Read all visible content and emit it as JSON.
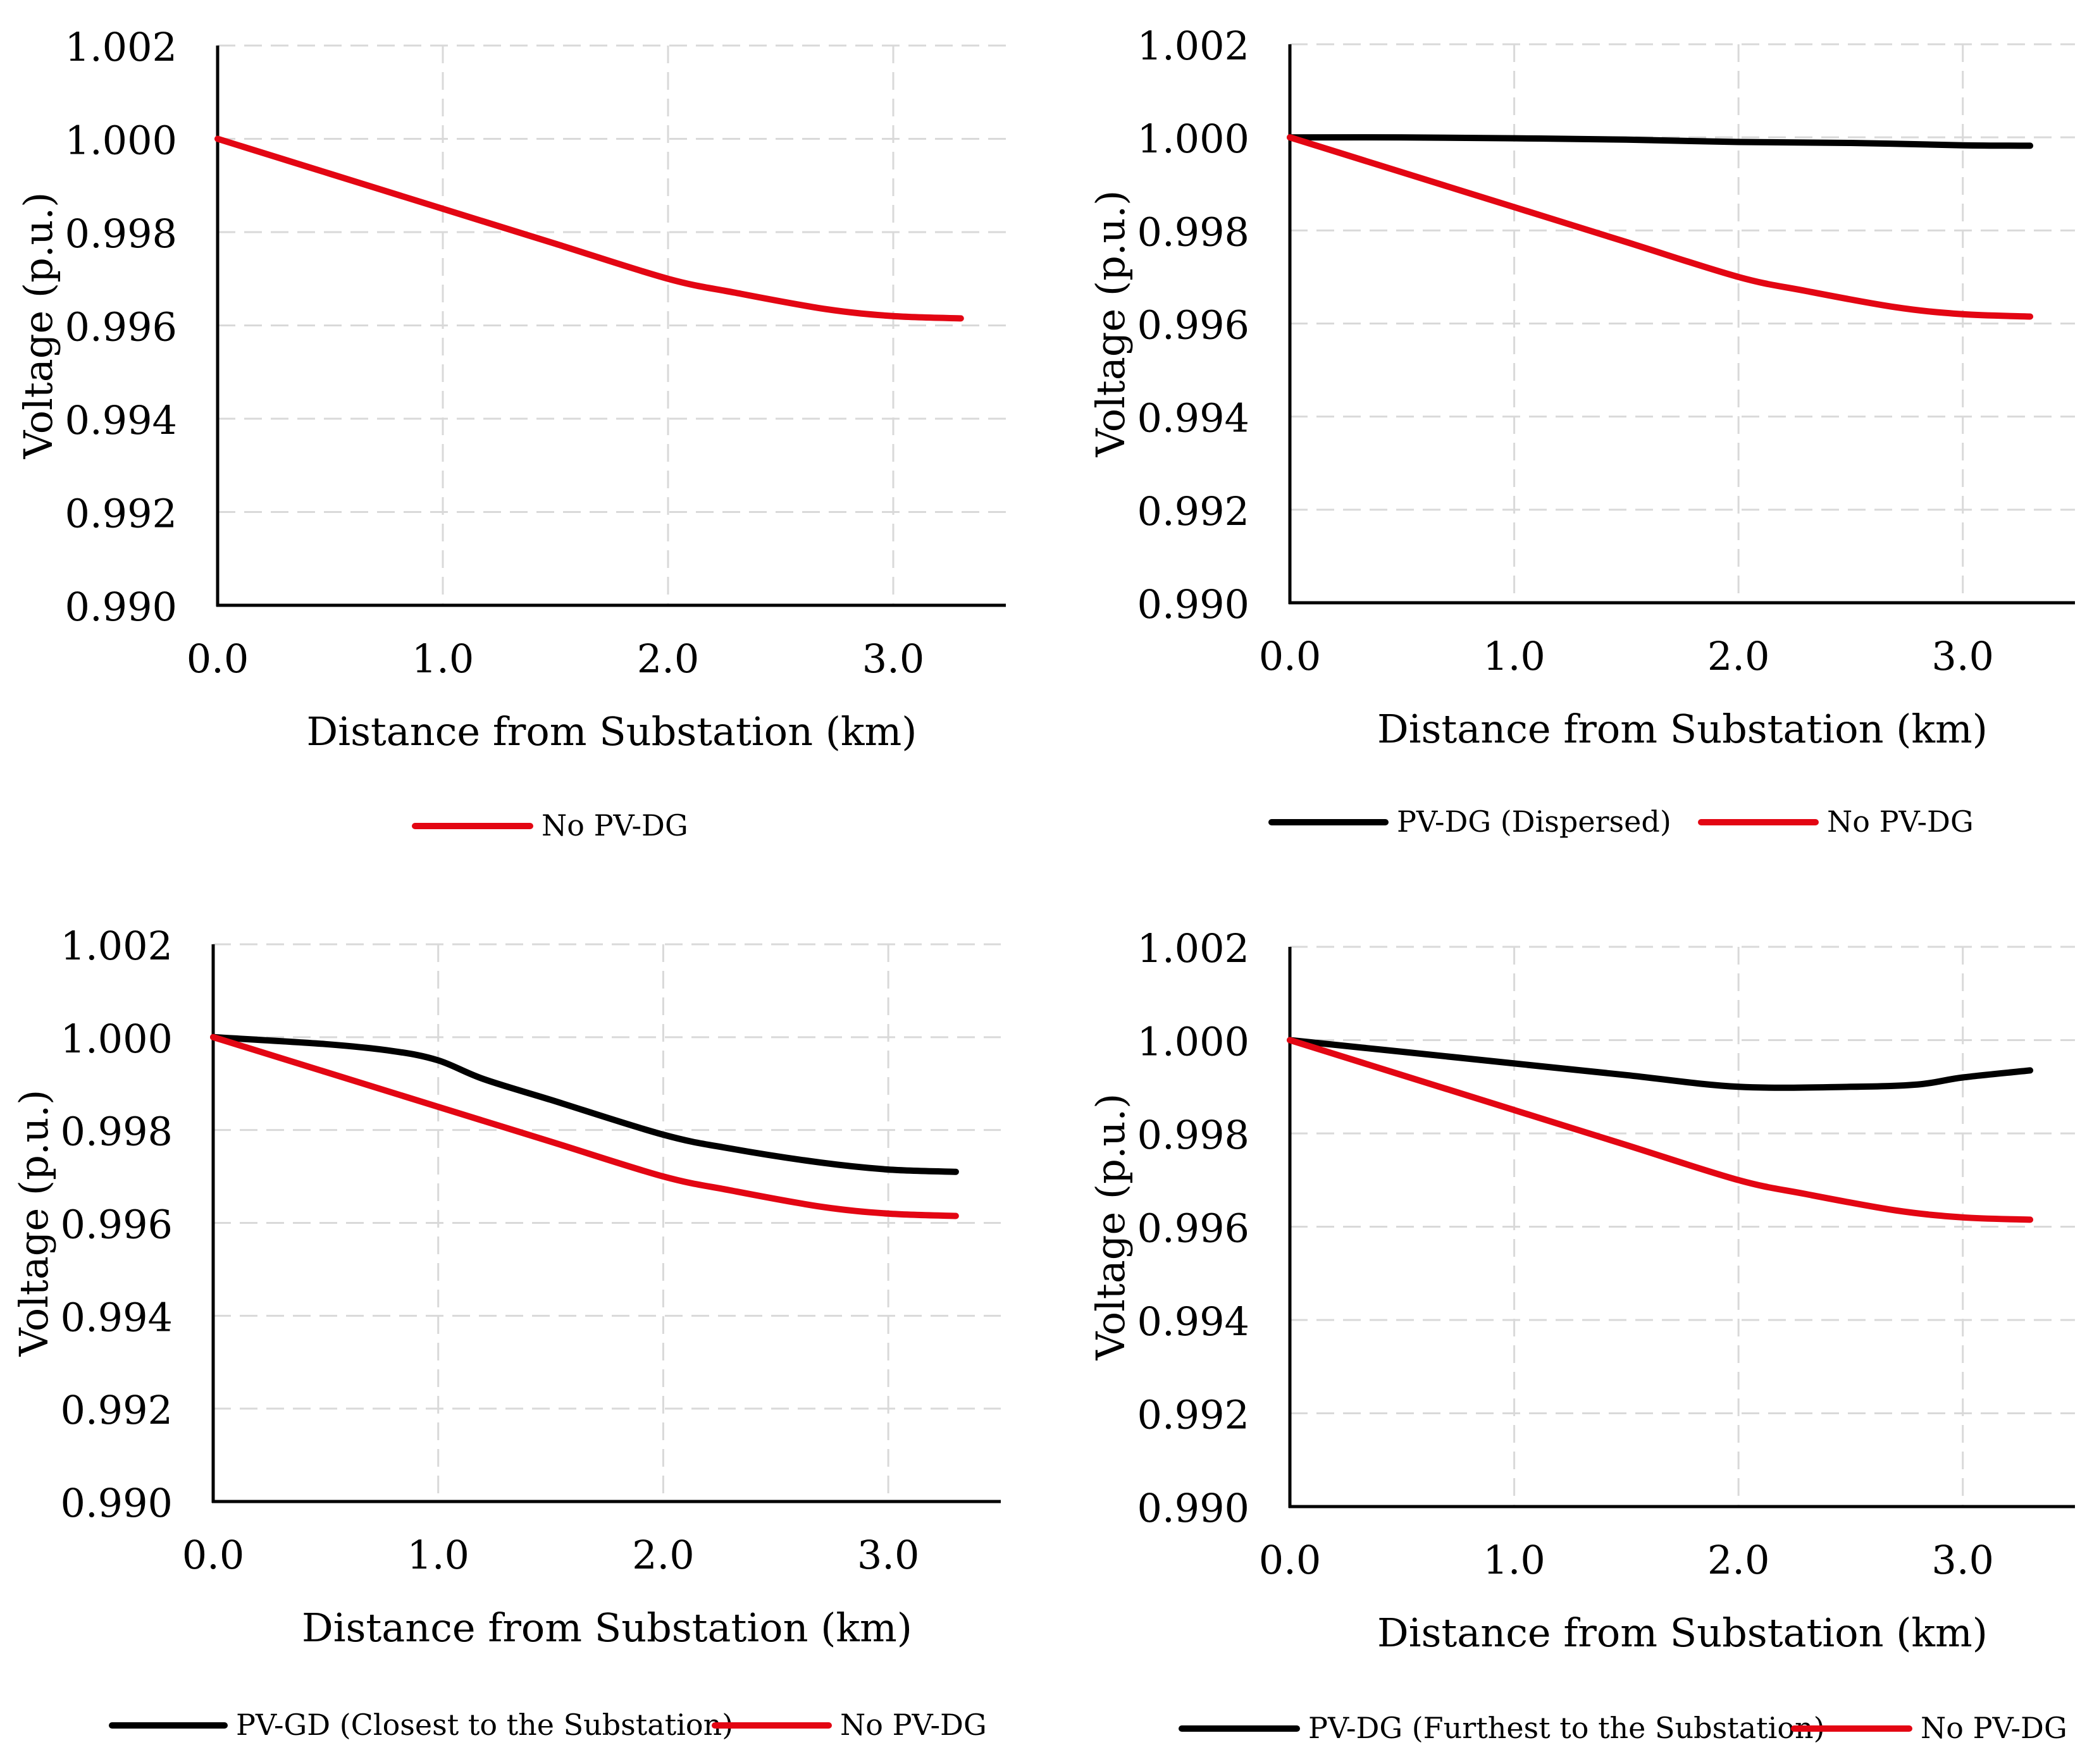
{
  "chart_data": [
    {
      "type": "line",
      "xlabel": "Distance from Substation (km)",
      "ylabel": "Voltage (p.u.)",
      "xlim": [
        0,
        3.5
      ],
      "ylim": [
        0.99,
        1.002
      ],
      "xticks": [
        0,
        1,
        2,
        3
      ],
      "xtick_labels": [
        "0.0",
        "1.0",
        "2.0",
        "3.0"
      ],
      "yticks": [
        0.99,
        0.992,
        0.994,
        0.996,
        0.998,
        1.0,
        1.002
      ],
      "ytick_labels": [
        "0.990",
        "0.992",
        "0.994",
        "0.996",
        "0.998",
        "1.000",
        "1.002"
      ],
      "grid": true,
      "legend_position": "bottom",
      "series": [
        {
          "name": "No PV-DG",
          "color": "#e30613",
          "x": [
            0,
            0.5,
            1,
            1.5,
            2,
            2.3,
            2.7,
            3,
            3.3
          ],
          "y": [
            1.0,
            0.99925,
            0.9985,
            0.99775,
            0.997,
            0.9967,
            0.99635,
            0.9962,
            0.99615
          ]
        }
      ]
    },
    {
      "type": "line",
      "xlabel": "Distance from Substation (km)",
      "ylabel": "Voltage (p.u.)",
      "xlim": [
        0,
        3.5
      ],
      "ylim": [
        0.99,
        1.002
      ],
      "xticks": [
        0,
        1,
        2,
        3
      ],
      "xtick_labels": [
        "0.0",
        "1.0",
        "2.0",
        "3.0"
      ],
      "yticks": [
        0.99,
        0.992,
        0.994,
        0.996,
        0.998,
        1.0,
        1.002
      ],
      "ytick_labels": [
        "0.990",
        "0.992",
        "0.994",
        "0.996",
        "0.998",
        "1.000",
        "1.002"
      ],
      "grid": true,
      "legend_position": "bottom",
      "series": [
        {
          "name": "PV-DG (Dispersed)",
          "color": "#000000",
          "x": [
            0,
            0.5,
            1,
            1.5,
            2,
            2.5,
            3,
            3.3
          ],
          "y": [
            1.0,
            1.0,
            0.99998,
            0.99995,
            0.9999,
            0.99988,
            0.99983,
            0.99982
          ]
        },
        {
          "name": "No PV-DG",
          "color": "#e30613",
          "x": [
            0,
            0.5,
            1,
            1.5,
            2,
            2.3,
            2.7,
            3,
            3.3
          ],
          "y": [
            1.0,
            0.99925,
            0.9985,
            0.99775,
            0.997,
            0.9967,
            0.99635,
            0.9962,
            0.99615
          ]
        }
      ]
    },
    {
      "type": "line",
      "xlabel": "Distance from Substation (km)",
      "ylabel": "Voltage (p.u.)",
      "xlim": [
        0,
        3.5
      ],
      "ylim": [
        0.99,
        1.002
      ],
      "xticks": [
        0,
        1,
        2,
        3
      ],
      "xtick_labels": [
        "0.0",
        "1.0",
        "2.0",
        "3.0"
      ],
      "yticks": [
        0.99,
        0.992,
        0.994,
        0.996,
        0.998,
        1.0,
        1.002
      ],
      "ytick_labels": [
        "0.990",
        "0.992",
        "0.994",
        "0.996",
        "0.998",
        "1.000",
        "1.002"
      ],
      "grid": true,
      "legend_position": "bottom",
      "series": [
        {
          "name": "PV-GD (Closest to the Substation)",
          "color": "#000000",
          "x": [
            0,
            0.5,
            0.8,
            1,
            1.2,
            1.5,
            2,
            2.3,
            2.7,
            3,
            3.3
          ],
          "y": [
            1.0,
            0.99985,
            0.9997,
            0.9995,
            0.9991,
            0.99865,
            0.9979,
            0.9976,
            0.9973,
            0.99715,
            0.9971
          ]
        },
        {
          "name": "No PV-DG",
          "color": "#e30613",
          "x": [
            0,
            0.5,
            1,
            1.5,
            2,
            2.3,
            2.7,
            3,
            3.3
          ],
          "y": [
            1.0,
            0.99925,
            0.9985,
            0.99775,
            0.997,
            0.9967,
            0.99635,
            0.9962,
            0.99615
          ]
        }
      ]
    },
    {
      "type": "line",
      "xlabel": "Distance from Substation (km)",
      "ylabel": "Voltage (p.u.)",
      "xlim": [
        0,
        3.5
      ],
      "ylim": [
        0.99,
        1.002
      ],
      "xticks": [
        0,
        1,
        2,
        3
      ],
      "xtick_labels": [
        "0.0",
        "1.0",
        "2.0",
        "3.0"
      ],
      "yticks": [
        0.99,
        0.992,
        0.994,
        0.996,
        0.998,
        1.0,
        1.002
      ],
      "ytick_labels": [
        "0.990",
        "0.992",
        "0.994",
        "0.996",
        "0.998",
        "1.000",
        "1.002"
      ],
      "grid": true,
      "legend_position": "bottom",
      "series": [
        {
          "name": "PV-DG (Furthest to the Substation)",
          "color": "#000000",
          "x": [
            0,
            0.5,
            1,
            1.5,
            2,
            2.5,
            2.8,
            3,
            3.3
          ],
          "y": [
            1.0,
            0.99975,
            0.9995,
            0.99925,
            0.999,
            0.999,
            0.99905,
            0.9992,
            0.99935
          ]
        },
        {
          "name": "No PV-DG",
          "color": "#e30613",
          "x": [
            0,
            0.5,
            1,
            1.5,
            2,
            2.3,
            2.7,
            3,
            3.3
          ],
          "y": [
            1.0,
            0.99925,
            0.9985,
            0.99775,
            0.997,
            0.9967,
            0.99635,
            0.9962,
            0.99615
          ]
        }
      ]
    }
  ]
}
